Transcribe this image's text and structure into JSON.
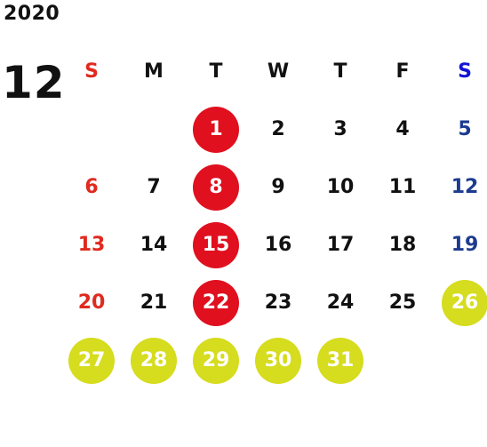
{
  "calendar": {
    "year": "2020",
    "month": "12",
    "weekdays": [
      {
        "label": "S",
        "color": "#e02a1f"
      },
      {
        "label": "M",
        "color": "#111111"
      },
      {
        "label": "T",
        "color": "#111111"
      },
      {
        "label": "W",
        "color": "#111111"
      },
      {
        "label": "T",
        "color": "#111111"
      },
      {
        "label": "F",
        "color": "#111111"
      },
      {
        "label": "S",
        "color": "#1414d2"
      }
    ],
    "first_weekday_index": 2,
    "days": [
      {
        "day": "1",
        "style": "red-circle"
      },
      {
        "day": "2",
        "style": "normal"
      },
      {
        "day": "3",
        "style": "normal"
      },
      {
        "day": "4",
        "style": "normal"
      },
      {
        "day": "5",
        "style": "blue-text"
      },
      {
        "day": "6",
        "style": "red-text"
      },
      {
        "day": "7",
        "style": "normal"
      },
      {
        "day": "8",
        "style": "red-circle"
      },
      {
        "day": "9",
        "style": "normal"
      },
      {
        "day": "10",
        "style": "normal"
      },
      {
        "day": "11",
        "style": "normal"
      },
      {
        "day": "12",
        "style": "blue-text"
      },
      {
        "day": "13",
        "style": "red-text"
      },
      {
        "day": "14",
        "style": "normal"
      },
      {
        "day": "15",
        "style": "red-circle"
      },
      {
        "day": "16",
        "style": "normal"
      },
      {
        "day": "17",
        "style": "normal"
      },
      {
        "day": "18",
        "style": "normal"
      },
      {
        "day": "19",
        "style": "blue-text"
      },
      {
        "day": "20",
        "style": "red-text"
      },
      {
        "day": "21",
        "style": "normal"
      },
      {
        "day": "22",
        "style": "red-circle"
      },
      {
        "day": "23",
        "style": "normal"
      },
      {
        "day": "24",
        "style": "normal"
      },
      {
        "day": "25",
        "style": "normal"
      },
      {
        "day": "26",
        "style": "yellow-circle"
      },
      {
        "day": "27",
        "style": "yellow-circle"
      },
      {
        "day": "28",
        "style": "yellow-circle"
      },
      {
        "day": "29",
        "style": "yellow-circle"
      },
      {
        "day": "30",
        "style": "yellow-circle"
      },
      {
        "day": "31",
        "style": "yellow-circle"
      }
    ],
    "colors": {
      "red_circle": "#e0101f",
      "yellow_circle": "#d6dc1e",
      "sunday_text": "#e02a1f",
      "saturday_text": "#1d3b8f",
      "default_text": "#111111"
    }
  }
}
